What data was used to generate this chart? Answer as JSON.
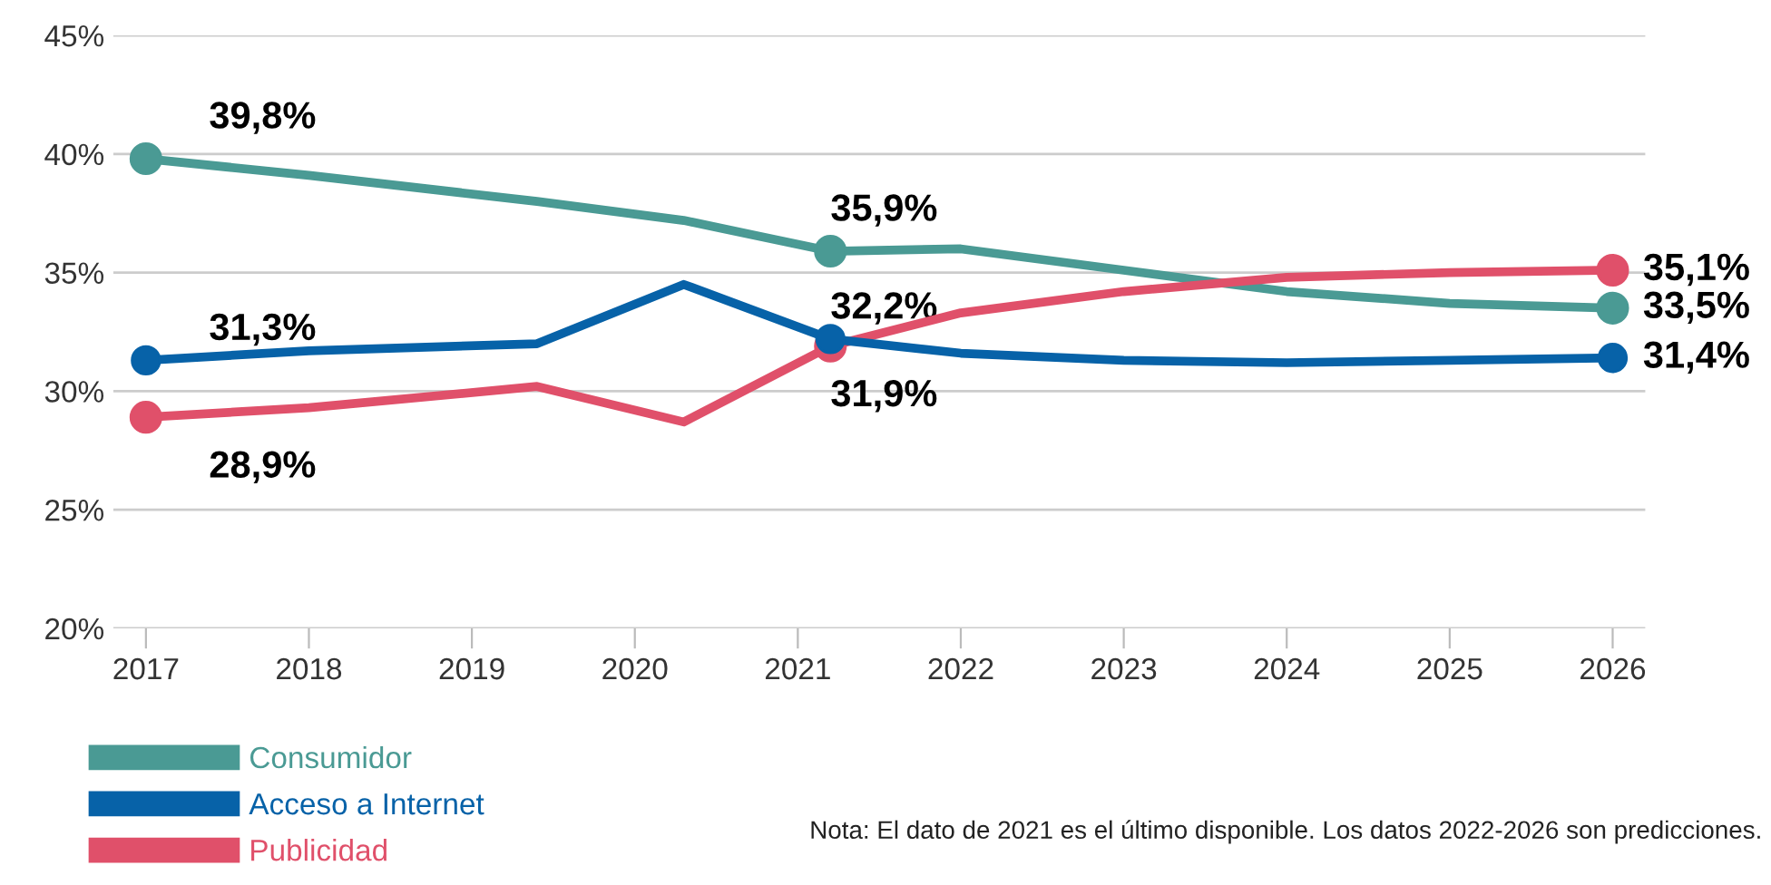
{
  "chart_data": {
    "type": "line",
    "x": [
      2017,
      2018,
      2019.4,
      2020.3,
      2021.2,
      2022,
      2023,
      2024,
      2025,
      2026
    ],
    "series": [
      {
        "name": "Consumidor",
        "color": "#4a9a94",
        "values": [
          39.8,
          39.1,
          38.0,
          37.2,
          35.9,
          36.0,
          35.1,
          34.2,
          33.7,
          33.5
        ],
        "value_labels": [
          "39,8%",
          null,
          null,
          null,
          "35,9%",
          null,
          null,
          null,
          null,
          "33,5%"
        ]
      },
      {
        "name": "Acceso a Internet",
        "color": "#0762a8",
        "values": [
          31.3,
          31.7,
          32.0,
          34.5,
          32.2,
          31.6,
          31.3,
          31.2,
          31.3,
          31.4
        ],
        "value_labels": [
          "31,3%",
          null,
          null,
          null,
          "32,2%",
          null,
          null,
          null,
          null,
          "31,4%"
        ]
      },
      {
        "name": "Publicidad",
        "color": "#e0506a",
        "values": [
          28.9,
          29.3,
          30.2,
          28.7,
          31.9,
          33.3,
          34.2,
          34.8,
          35.0,
          35.1
        ],
        "value_labels": [
          "28,9%",
          null,
          null,
          null,
          "31,9%",
          null,
          null,
          null,
          null,
          "35,1%"
        ]
      }
    ],
    "xlim": [
      2016.8,
      2026.2
    ],
    "xticks": [
      2017,
      2018,
      2019,
      2020,
      2021,
      2022,
      2023,
      2024,
      2025,
      2026
    ],
    "ylim": [
      20,
      45
    ],
    "yticks": [
      {
        "value": 20,
        "label": "20%"
      },
      {
        "value": 25,
        "label": "25%"
      },
      {
        "value": 30,
        "label": "30%"
      },
      {
        "value": 35,
        "label": "35%"
      },
      {
        "value": 40,
        "label": "40%"
      },
      {
        "value": 45,
        "label": "45%"
      }
    ],
    "grid": "y",
    "legend": "bottom left",
    "line_style": "solid",
    "annotations": [
      "Nota: El dato de 2021 es el último disponible. Los datos 2022-2026 son predicciones."
    ]
  }
}
